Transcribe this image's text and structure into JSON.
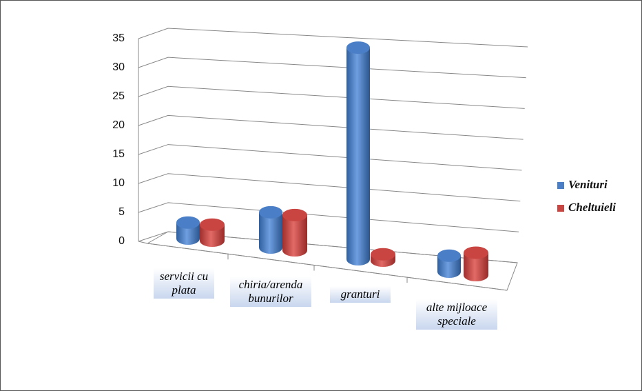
{
  "chart_data": {
    "type": "bar3d",
    "categories": [
      "servicii cu plata",
      "chiria/arenda bunurilor",
      "granturi",
      "alte mijloace speciale"
    ],
    "series": [
      {
        "name": "Venituri",
        "color": "#4a7ec6",
        "values": [
          2.5,
          5.5,
          33,
          2.5
        ]
      },
      {
        "name": "Cheltuieli",
        "color": "#c94542",
        "values": [
          2.5,
          5.5,
          1,
          3.5
        ]
      }
    ],
    "ylim": [
      0,
      35
    ],
    "yticks": [
      0,
      5,
      10,
      15,
      20,
      25,
      30,
      35
    ],
    "grid": true,
    "legend": "right"
  }
}
